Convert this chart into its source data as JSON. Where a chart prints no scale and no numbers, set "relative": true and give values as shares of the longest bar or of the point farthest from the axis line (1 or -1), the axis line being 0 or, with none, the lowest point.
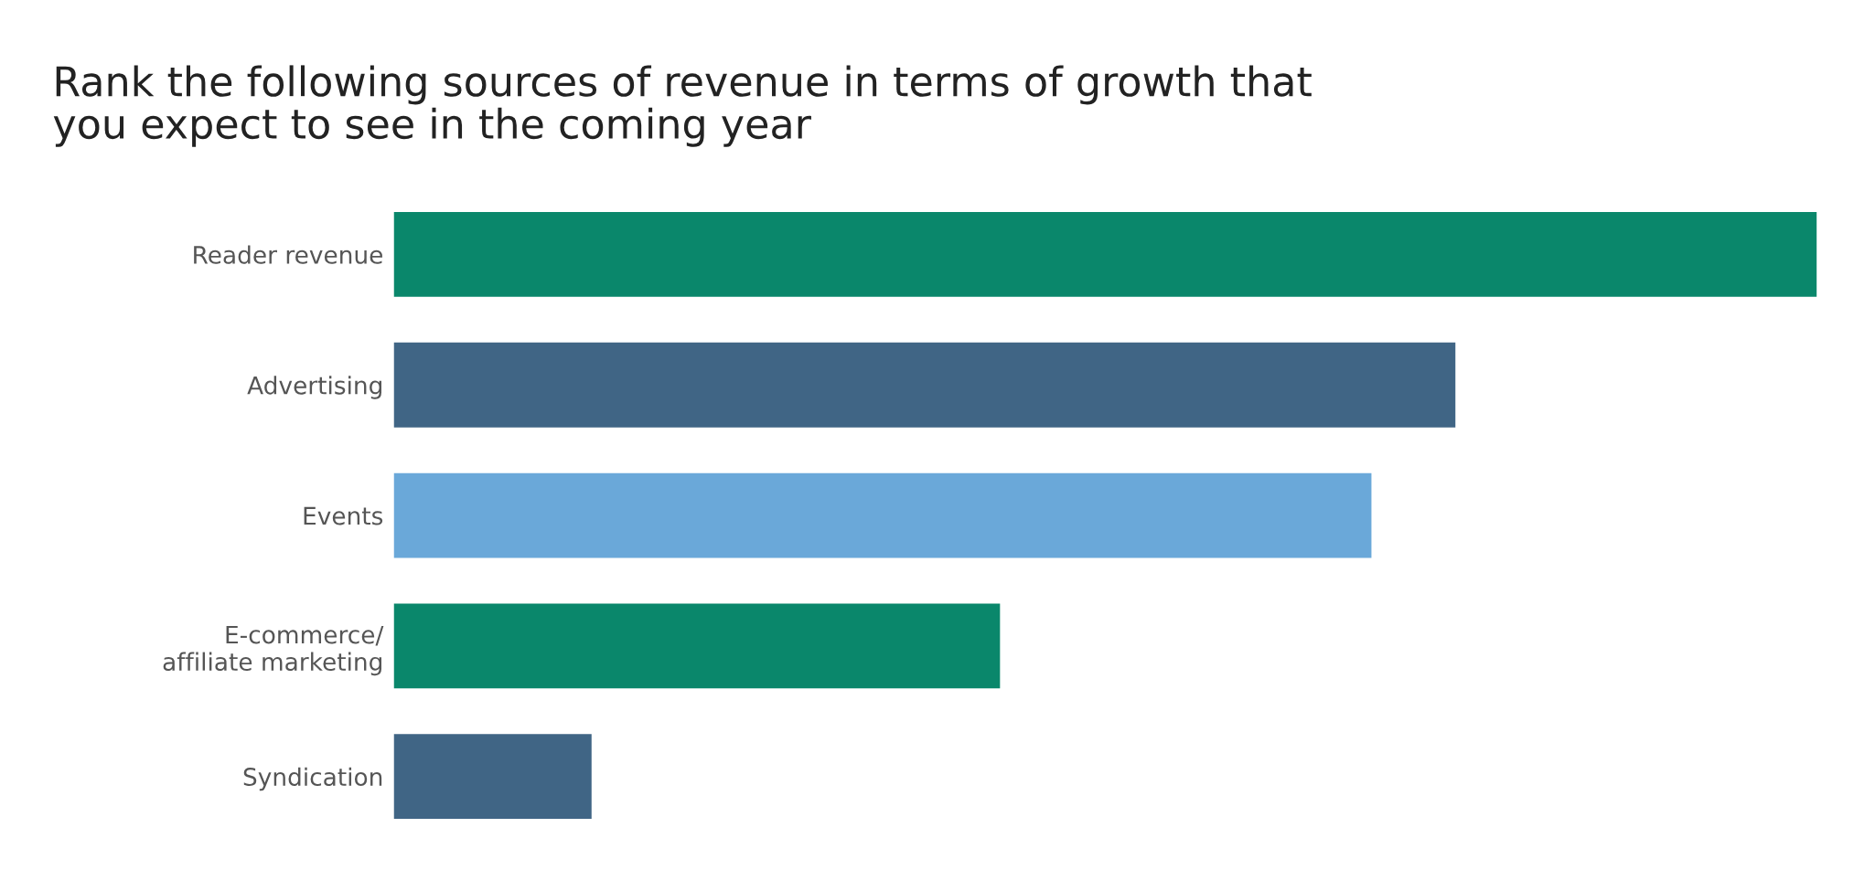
{
  "chart_data": {
    "type": "bar",
    "orientation": "horizontal",
    "relative": true,
    "title": "Rank the following sources of revenue in terms of growth that\nyou expect to see in the coming year",
    "categories": [
      "Reader revenue",
      "Advertising",
      "Events",
      "E-commerce/\naffiliate marketing",
      "Syndication"
    ],
    "values": [
      1,
      0.746,
      0.687,
      0.426,
      0.139
    ],
    "colors": [
      "#0a876b",
      "#406585",
      "#6aa8d9",
      "#0a876b",
      "#406585"
    ],
    "grid": false,
    "legend": false
  }
}
